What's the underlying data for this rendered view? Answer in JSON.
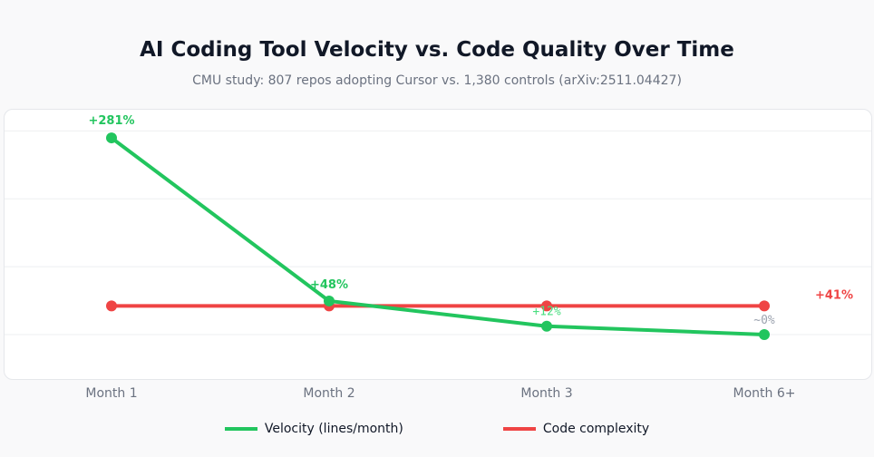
{
  "title": "AI Coding Tool Velocity vs. Code Quality Over Time",
  "subtitle": "CMU study: 807 repos adopting Cursor vs. 1,380 controls (arXiv:2511.04427)",
  "chart_data": {
    "type": "line",
    "categories": [
      "Month 1",
      "Month 2",
      "Month 3",
      "Month 6+"
    ],
    "series": [
      {
        "name": "Velocity (lines/month)",
        "values": [
          281,
          48,
          12,
          0
        ],
        "labels": [
          "+281%",
          "+48%",
          "+12%",
          "~0%"
        ],
        "color": "#22c55e"
      },
      {
        "name": "Code complexity",
        "values": [
          41,
          41,
          41,
          41
        ],
        "labels": [
          "+41%"
        ],
        "color": "#ef4444"
      }
    ],
    "ylim": [
      -65,
      300
    ],
    "grid": true,
    "legend": "bottom"
  }
}
